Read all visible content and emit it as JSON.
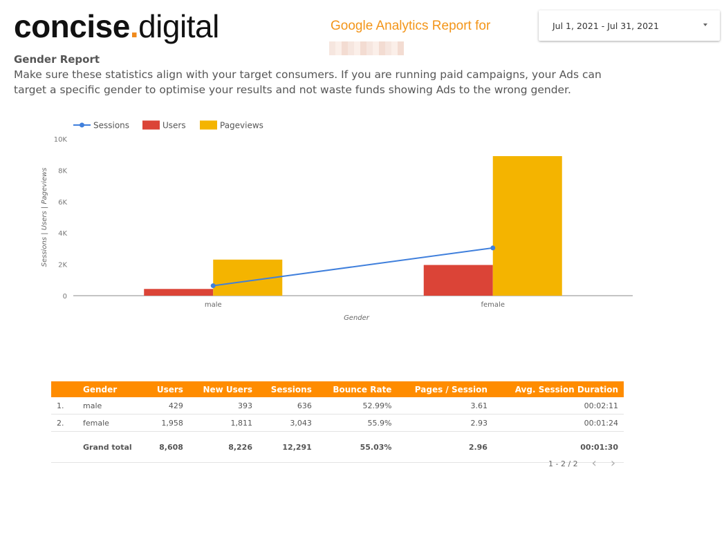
{
  "header": {
    "logo_brand": "concise",
    "logo_dot": ".",
    "logo_suffix": "digital",
    "report_title": "Google Analytics Report for",
    "date_range": "Jul 1, 2021 - Jul 31, 2021"
  },
  "section": {
    "title": "Gender Report",
    "description": "Make sure these statistics align with your target consumers. If you are running paid campaigns, your Ads can target a specific gender to optimise your results and not waste funds showing Ads to the wrong gender."
  },
  "colors": {
    "sessions": "#3f7fdc",
    "users": "#db4437",
    "pageviews": "#f4b400",
    "header": "#ff8c00",
    "accent": "#f39519"
  },
  "chart_data": {
    "type": "bar",
    "categories": [
      "male",
      "female"
    ],
    "series": [
      {
        "name": "Sessions",
        "type": "line",
        "values": [
          636,
          3043
        ]
      },
      {
        "name": "Users",
        "type": "bar",
        "values": [
          429,
          1958
        ]
      },
      {
        "name": "Pageviews",
        "type": "bar",
        "values": [
          2300,
          8900
        ]
      }
    ],
    "xlabel": "Gender",
    "ylabel": "Sessions | Users | Pageviews",
    "ylim": [
      0,
      10000
    ],
    "yticks": [
      "0",
      "2K",
      "4K",
      "6K",
      "8K",
      "10K"
    ],
    "legend": "top-left",
    "grid": false
  },
  "table": {
    "columns": [
      "Gender",
      "Users",
      "New Users",
      "Sessions",
      "Bounce Rate",
      "Pages / Session",
      "Avg. Session Duration"
    ],
    "rows": [
      {
        "index": "1.",
        "gender": "male",
        "users": "429",
        "new_users": "393",
        "sessions": "636",
        "bounce": "52.99%",
        "pps": "3.61",
        "duration": "00:02:11"
      },
      {
        "index": "2.",
        "gender": "female",
        "users": "1,958",
        "new_users": "1,811",
        "sessions": "3,043",
        "bounce": "55.9%",
        "pps": "2.93",
        "duration": "00:01:24"
      }
    ],
    "total": {
      "label": "Grand total",
      "users": "8,608",
      "new_users": "8,226",
      "sessions": "12,291",
      "bounce": "55.03%",
      "pps": "2.96",
      "duration": "00:01:30"
    }
  },
  "pagination": {
    "text": "1 - 2 / 2",
    "prev_icon": "chevron-left-icon",
    "next_icon": "chevron-right-icon"
  }
}
